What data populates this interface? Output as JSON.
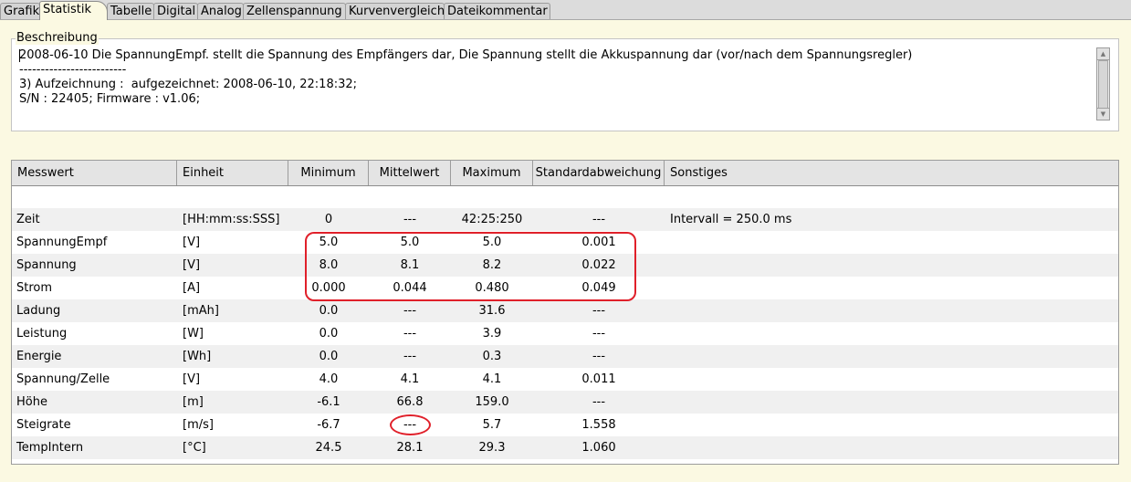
{
  "tabs": [
    "Grafik",
    "Statistik",
    "Tabelle",
    "Digital",
    "Analog",
    "Zellenspannung",
    "Kurvenvergleich",
    "Dateikommentar"
  ],
  "description": {
    "title": "Beschreibung",
    "line1": "2008-06-10 Die SpannungEmpf. stellt die Spannung des Empfängers dar, Die Spannung stellt die Akkuspannung dar (vor/nach dem Spannungsregler)",
    "line2": "-------------------------",
    "line3": "3) Aufzeichnung :  aufgezeichnet: 2008-06-10, 22:18:32;",
    "line4": "S/N : 22405; Firmware : v1.06;"
  },
  "table": {
    "headers": [
      "Messwert",
      "Einheit",
      "Minimum",
      "Mittelwert",
      "Maximum",
      "Standardabweichung",
      "Sonstiges"
    ],
    "rows": [
      {
        "name": "Zeit",
        "unit": "[HH:mm:ss:SSS]",
        "min": "0",
        "avg": "---",
        "max": "42:25:250",
        "std": "---",
        "other": "Intervall =  250.0 ms"
      },
      {
        "name": "SpannungEmpf",
        "unit": "[V]",
        "min": "5.0",
        "avg": "5.0",
        "max": "5.0",
        "std": "0.001",
        "other": ""
      },
      {
        "name": "Spannung",
        "unit": "[V]",
        "min": "8.0",
        "avg": "8.1",
        "max": "8.2",
        "std": "0.022",
        "other": ""
      },
      {
        "name": "Strom",
        "unit": "[A]",
        "min": "0.000",
        "avg": "0.044",
        "max": "0.480",
        "std": "0.049",
        "other": ""
      },
      {
        "name": "Ladung",
        "unit": "[mAh]",
        "min": "0.0",
        "avg": "---",
        "max": "31.6",
        "std": "---",
        "other": ""
      },
      {
        "name": "Leistung",
        "unit": "[W]",
        "min": "0.0",
        "avg": "---",
        "max": "3.9",
        "std": "---",
        "other": ""
      },
      {
        "name": "Energie",
        "unit": "[Wh]",
        "min": "0.0",
        "avg": "---",
        "max": "0.3",
        "std": "---",
        "other": ""
      },
      {
        "name": "Spannung/Zelle",
        "unit": "[V]",
        "min": "4.0",
        "avg": "4.1",
        "max": "4.1",
        "std": "0.011",
        "other": ""
      },
      {
        "name": "Höhe",
        "unit": "[m]",
        "min": "-6.1",
        "avg": "66.8",
        "max": "159.0",
        "std": "---",
        "other": ""
      },
      {
        "name": "Steigrate",
        "unit": "[m/s]",
        "min": "-6.7",
        "avg": "---",
        "max": "5.7",
        "std": "1.558",
        "other": ""
      },
      {
        "name": "TempIntern",
        "unit": "[°C]",
        "min": "24.5",
        "avg": "28.1",
        "max": "29.3",
        "std": "1.060",
        "other": ""
      }
    ]
  },
  "annotation_color": "#e0202a"
}
